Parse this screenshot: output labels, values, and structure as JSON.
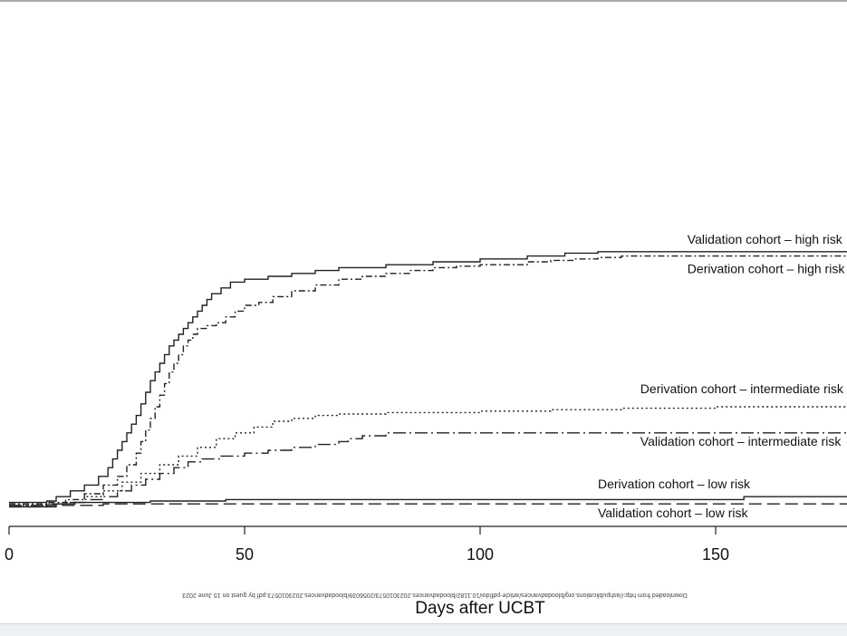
{
  "chart_data": {
    "type": "line",
    "step": true,
    "xlabel": "Days after UCBT",
    "ylabel": "",
    "xlim": [
      0,
      178
    ],
    "ylim": [
      0,
      1
    ],
    "xticks": [
      0,
      50,
      100,
      150
    ],
    "grid": false,
    "legend": "inline labels at right end of curves",
    "series": [
      {
        "name": "Validation cohort – high risk",
        "style": "solid",
        "x": [
          0,
          8,
          10,
          13,
          16,
          19,
          21,
          22,
          23,
          24,
          25,
          26,
          27,
          28,
          29,
          30,
          31,
          32,
          33,
          34,
          35,
          36,
          37,
          38,
          39,
          40,
          41,
          42,
          43,
          45,
          47,
          50,
          55,
          60,
          65,
          70,
          80,
          90,
          100,
          110,
          118,
          125,
          140,
          178
        ],
        "y": [
          0.02,
          0.025,
          0.04,
          0.06,
          0.08,
          0.11,
          0.14,
          0.17,
          0.2,
          0.23,
          0.26,
          0.29,
          0.32,
          0.36,
          0.4,
          0.44,
          0.47,
          0.5,
          0.53,
          0.56,
          0.58,
          0.6,
          0.62,
          0.64,
          0.66,
          0.68,
          0.7,
          0.72,
          0.74,
          0.76,
          0.78,
          0.79,
          0.8,
          0.81,
          0.82,
          0.83,
          0.84,
          0.85,
          0.86,
          0.87,
          0.88,
          0.885,
          0.885,
          0.885
        ]
      },
      {
        "name": "Derivation cohort – high risk",
        "style": "dash-dot",
        "x": [
          0,
          8,
          12,
          16,
          20,
          23,
          25,
          27,
          28,
          29,
          30,
          31,
          32,
          33,
          34,
          35,
          36,
          37,
          38,
          39,
          40,
          42,
          44,
          46,
          48,
          50,
          53,
          56,
          60,
          65,
          70,
          75,
          80,
          85,
          90,
          95,
          100,
          110,
          115,
          120,
          125,
          130,
          140,
          178
        ],
        "y": [
          0.015,
          0.02,
          0.03,
          0.05,
          0.08,
          0.11,
          0.15,
          0.19,
          0.23,
          0.27,
          0.31,
          0.35,
          0.39,
          0.43,
          0.47,
          0.5,
          0.53,
          0.56,
          0.58,
          0.6,
          0.62,
          0.63,
          0.64,
          0.66,
          0.68,
          0.7,
          0.71,
          0.73,
          0.75,
          0.77,
          0.79,
          0.8,
          0.81,
          0.82,
          0.83,
          0.835,
          0.84,
          0.85,
          0.855,
          0.86,
          0.865,
          0.87,
          0.87,
          0.87
        ]
      },
      {
        "name": "Derivation cohort – intermediate risk",
        "style": "dotted",
        "x": [
          0,
          8,
          12,
          16,
          20,
          24,
          28,
          32,
          36,
          40,
          44,
          48,
          52,
          56,
          60,
          65,
          70,
          80,
          100,
          115,
          130,
          150,
          178
        ],
        "y": [
          0.01,
          0.015,
          0.02,
          0.04,
          0.06,
          0.09,
          0.12,
          0.15,
          0.18,
          0.21,
          0.24,
          0.26,
          0.28,
          0.3,
          0.31,
          0.32,
          0.325,
          0.33,
          0.335,
          0.34,
          0.345,
          0.35,
          0.36
        ]
      },
      {
        "name": "Validation cohort – intermediate risk",
        "style": "long-dash-dot",
        "x": [
          0,
          8,
          12,
          16,
          20,
          23,
          26,
          29,
          32,
          35,
          38,
          41,
          45,
          50,
          55,
          60,
          65,
          70,
          72,
          75,
          78,
          80,
          90,
          100,
          120,
          140,
          178
        ],
        "y": [
          0.01,
          0.015,
          0.02,
          0.03,
          0.04,
          0.06,
          0.08,
          0.1,
          0.12,
          0.14,
          0.16,
          0.17,
          0.18,
          0.19,
          0.2,
          0.21,
          0.22,
          0.23,
          0.24,
          0.25,
          0.25,
          0.26,
          0.26,
          0.26,
          0.26,
          0.26,
          0.26
        ]
      },
      {
        "name": "Derivation cohort – low risk",
        "style": "solid",
        "x": [
          0,
          8,
          10,
          14,
          20,
          30,
          46,
          60,
          100,
          156,
          178
        ],
        "y": [
          0.005,
          0.01,
          0.015,
          0.02,
          0.02,
          0.025,
          0.03,
          0.03,
          0.03,
          0.04,
          0.04
        ]
      },
      {
        "name": "Validation cohort – low risk",
        "style": "dashed",
        "x": [
          0,
          10,
          20,
          178
        ],
        "y": [
          0.005,
          0.01,
          0.015,
          0.015
        ]
      }
    ],
    "labels": [
      {
        "text": "Validation cohort – high risk",
        "at_x": 144
      },
      {
        "text": "Derivation cohort – high risk",
        "at_x": 144
      },
      {
        "text": "Derivation cohort – intermediate risk",
        "at_x": 134
      },
      {
        "text": "Validation cohort – intermediate risk",
        "at_x": 134
      },
      {
        "text": "Derivation cohort – low risk",
        "at_x": 125
      },
      {
        "text": "Validation cohort – low risk",
        "at_x": 125
      }
    ]
  },
  "watermark": "Downloaded from http://ashpublications.org/bloodadvances/article-pdf/doi/10.1182/bloodadvances.2023010573/2056039/bloodadvances.2023010573.pdf by guest on 15 June 2023"
}
